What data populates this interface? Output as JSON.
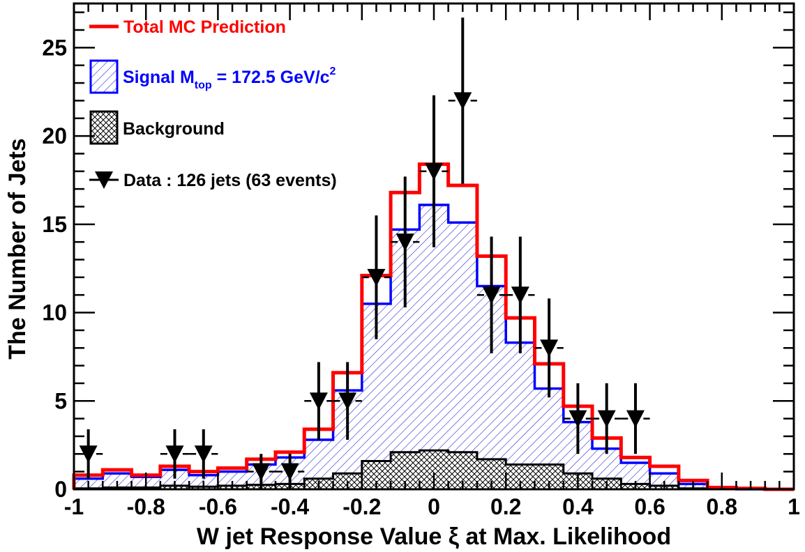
{
  "chart_data": {
    "type": "histogram",
    "xlabel": "W jet Response Value ξ at Max. Likelihood",
    "ylabel": "The Number of Jets",
    "xlim": [
      -1,
      1
    ],
    "ylim": [
      0,
      27.5
    ],
    "x_ticks": [
      "-1",
      "-0.8",
      "-0.6",
      "-0.4",
      "-0.2",
      "0",
      "0.2",
      "0.4",
      "0.6",
      "0.8",
      "1"
    ],
    "x_tick_values": [
      -1,
      -0.8,
      -0.6,
      -0.4,
      -0.2,
      0,
      0.2,
      0.4,
      0.6,
      0.8,
      1
    ],
    "y_ticks": [
      "0",
      "5",
      "10",
      "15",
      "20",
      "25"
    ],
    "y_tick_values": [
      0,
      5,
      10,
      15,
      20,
      25
    ],
    "bin_edges": [
      -1,
      -0.92,
      -0.84,
      -0.76,
      -0.68,
      -0.6,
      -0.52,
      -0.44,
      -0.36,
      -0.28,
      -0.2,
      -0.12,
      -0.04,
      0.04,
      0.12,
      0.2,
      0.28,
      0.36,
      0.44,
      0.52,
      0.6,
      0.68,
      0.76,
      0.84,
      0.92,
      1
    ],
    "series": [
      {
        "name": "Total MC Prediction",
        "style": "line",
        "color": "#ff0000",
        "values": [
          0.8,
          1.1,
          0.8,
          1.3,
          1.0,
          1.2,
          1.7,
          2.1,
          3.4,
          6.6,
          12.1,
          16.8,
          18.4,
          17.2,
          13.2,
          9.7,
          7.1,
          4.7,
          2.9,
          1.8,
          1.3,
          0.5,
          0.1,
          0.05,
          0.0
        ]
      },
      {
        "name": "Signal M_top = 172.5 GeV/c²",
        "style": "hatched-area",
        "color": "#0000ff",
        "values": [
          0.6,
          0.9,
          0.7,
          1.1,
          0.8,
          1.0,
          1.4,
          1.8,
          2.8,
          5.6,
          10.5,
          14.7,
          16.1,
          15.1,
          11.5,
          8.3,
          5.7,
          3.8,
          2.3,
          1.5,
          0.9,
          0.3,
          0.05,
          0.0,
          0.0
        ]
      },
      {
        "name": "Background",
        "style": "crosshatched-area",
        "color": "#000000",
        "values": [
          0.05,
          0.1,
          0.1,
          0.2,
          0.15,
          0.2,
          0.25,
          0.3,
          0.6,
          0.9,
          1.6,
          2.1,
          2.2,
          2.1,
          1.7,
          1.4,
          1.4,
          0.9,
          0.6,
          0.3,
          0.2,
          0.05,
          0.0,
          0.0,
          0.0
        ]
      },
      {
        "name": "Data : 126 jets (63 events)",
        "style": "points-with-errors",
        "color": "#000000",
        "x": [
          -0.96,
          -0.72,
          -0.64,
          -0.48,
          -0.4,
          -0.32,
          -0.24,
          -0.16,
          -0.08,
          0.0,
          0.08,
          0.16,
          0.24,
          0.32,
          0.4,
          0.48,
          0.56
        ],
        "y": [
          2,
          2,
          2,
          1,
          1,
          5,
          5,
          12,
          14,
          18,
          22,
          11,
          11,
          8,
          4,
          4,
          4
        ],
        "err_low": [
          1.4,
          1.4,
          1.4,
          1.0,
          1.0,
          2.2,
          2.2,
          3.5,
          3.7,
          4.3,
          4.7,
          3.3,
          3.3,
          2.8,
          2.0,
          2.0,
          2.0
        ],
        "err_high": [
          1.4,
          1.4,
          1.4,
          1.0,
          1.0,
          2.2,
          2.2,
          3.5,
          3.7,
          4.3,
          4.7,
          3.3,
          3.3,
          2.8,
          2.0,
          2.0,
          2.0
        ],
        "x_halfwidth": 0.04
      }
    ],
    "legend": {
      "placement": "top-left",
      "entries": [
        {
          "label": "Total MC Prediction",
          "color": "#ff0000"
        },
        {
          "label_main": "Signal M",
          "label_sub": "top",
          "label_rest": " = 172.5 GeV/c",
          "label_sup": "2",
          "color": "#0000ff"
        },
        {
          "label": "Background",
          "color": "#000000"
        },
        {
          "label": "Data : 126 jets (63 events)",
          "color": "#000000"
        }
      ]
    }
  }
}
